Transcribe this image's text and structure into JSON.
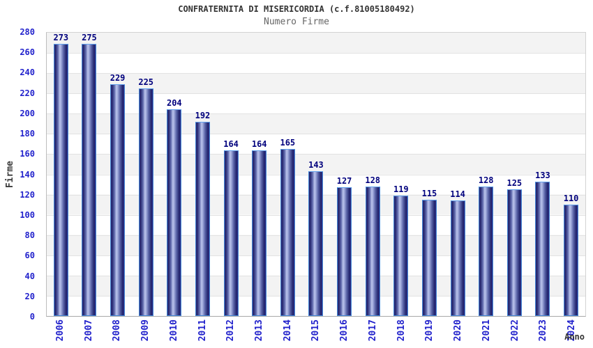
{
  "chart_data": {
    "type": "bar",
    "title": "CONFRATERNITA DI MISERICORDIA (c.f.81005180492)",
    "subtitle": "Numero Firme",
    "xlabel": "Anno",
    "ylabel": "Firme",
    "categories": [
      "2006",
      "2007",
      "2008",
      "2009",
      "2010",
      "2011",
      "2012",
      "2013",
      "2014",
      "2015",
      "2016",
      "2017",
      "2018",
      "2019",
      "2020",
      "2021",
      "2022",
      "2023",
      "2024"
    ],
    "values": [
      273,
      275,
      229,
      225,
      204,
      192,
      164,
      164,
      165,
      143,
      127,
      128,
      119,
      115,
      114,
      128,
      125,
      133,
      110
    ],
    "ylim": [
      0,
      280
    ],
    "ytick_step": 20,
    "yticks": [
      0,
      20,
      40,
      60,
      80,
      100,
      120,
      140,
      160,
      180,
      200,
      220,
      240,
      260,
      280
    ],
    "grid": true,
    "legend": "none",
    "alternating_bands": true,
    "colors": {
      "tick_label": "#2222cc",
      "bar_value_label": "#00007d",
      "title": "#333333",
      "subtitle": "#666666",
      "axis_title": "#3c3c3c",
      "band_gray": "#f3f3f3",
      "gridline": "#e2e2e2",
      "bar_border": "#4287d6",
      "bar_dark": "#23236b",
      "bar_highlight": "#b9c2ea"
    }
  }
}
